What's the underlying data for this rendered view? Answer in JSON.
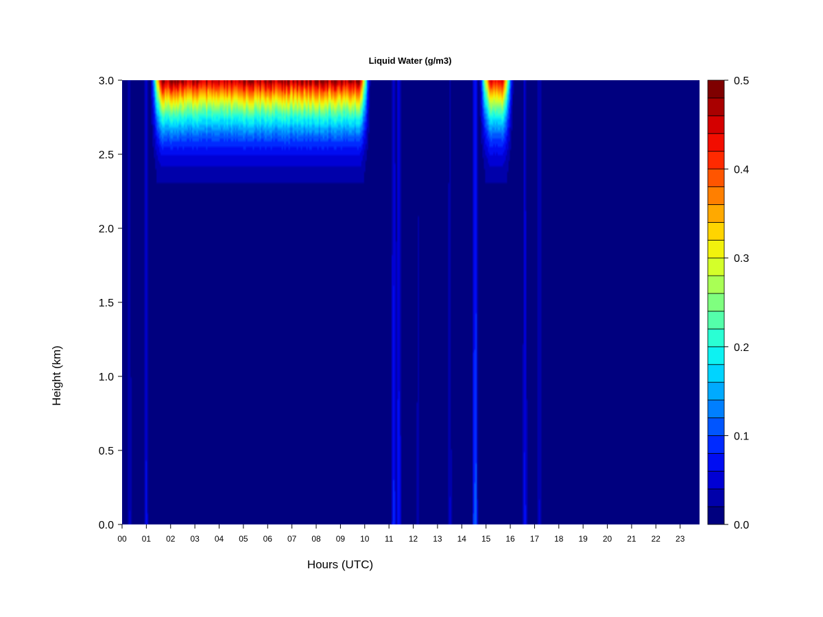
{
  "chart_data": {
    "type": "heatmap",
    "title": "Liquid Water (g/m3)",
    "xlabel": "Hours (UTC)",
    "ylabel": "Height (km)",
    "x_ticks": [
      "00",
      "01",
      "02",
      "03",
      "04",
      "05",
      "06",
      "07",
      "08",
      "09",
      "10",
      "11",
      "12",
      "13",
      "14",
      "15",
      "16",
      "17",
      "18",
      "19",
      "20",
      "21",
      "22",
      "23"
    ],
    "y_ticks": [
      "0.0",
      "0.5",
      "1.0",
      "1.5",
      "2.0",
      "2.5",
      "3.0"
    ],
    "colorbar_ticks": [
      "0.0",
      "0.1",
      "0.2",
      "0.3",
      "0.4",
      "0.5"
    ],
    "xlim": [
      0,
      23.8
    ],
    "ylim": [
      0,
      3.0
    ],
    "zlim": [
      0,
      0.5
    ],
    "color_levels": 25,
    "colormap": [
      "#00007f",
      "#0000b2",
      "#0000e5",
      "#0019ff",
      "#004cff",
      "#007fff",
      "#00b2ff",
      "#00e5ff",
      "#19ffe5",
      "#4cffb2",
      "#7fff7f",
      "#b2ff4c",
      "#e5ff19",
      "#ffe500",
      "#ffb200",
      "#ff7f00",
      "#ff4c00",
      "#ff1900",
      "#e50000",
      "#b20000",
      "#7f0000"
    ],
    "cloud_layers": [
      {
        "hours": [
          1.2,
          10.2
        ],
        "base_km": 2.3,
        "top_km": 3.0,
        "max_lwc": 0.47
      },
      {
        "hours": [
          14.75,
          16.1
        ],
        "base_km": 2.3,
        "top_km": 3.0,
        "max_lwc": 0.44
      }
    ],
    "rain_columns": [
      {
        "hour": 0.3,
        "max_lwc": 0.05
      },
      {
        "hour": 1.0,
        "max_lwc": 0.07
      },
      {
        "hour": 11.2,
        "max_lwc": 0.12
      },
      {
        "hour": 11.4,
        "max_lwc": 0.1
      },
      {
        "hour": 12.2,
        "max_lwc": 0.04
      },
      {
        "hour": 13.5,
        "max_lwc": 0.05
      },
      {
        "hour": 14.55,
        "max_lwc": 0.16
      },
      {
        "hour": 16.6,
        "max_lwc": 0.08
      },
      {
        "hour": 17.2,
        "max_lwc": 0.06
      }
    ]
  }
}
